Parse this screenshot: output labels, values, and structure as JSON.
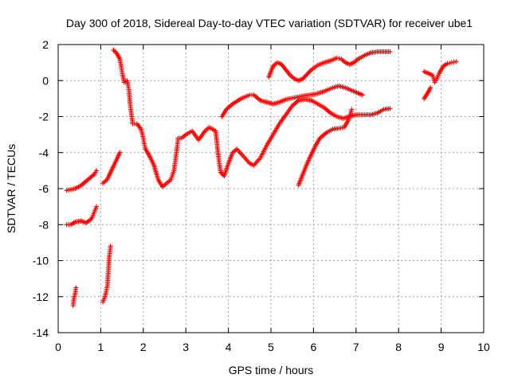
{
  "chart_data": {
    "type": "scatter",
    "title": "Day 300 of 2018, Sidereal Day-to-day VTEC variation (SDTVAR) for receiver ube1",
    "xlabel": "GPS time / hours",
    "ylabel": "SDTVAR / TECUs",
    "xlim": [
      0,
      10
    ],
    "ylim": [
      -14,
      2
    ],
    "xticks": [
      "0",
      "1",
      "2",
      "3",
      "4",
      "5",
      "6",
      "7",
      "8",
      "9",
      "10"
    ],
    "yticks": [
      "-14",
      "-12",
      "-10",
      "-8",
      "-6",
      "-4",
      "-2",
      "0",
      "2"
    ],
    "grid": true,
    "marker": "plus",
    "color": "#ff0000",
    "series": [
      {
        "points": [
          [
            0.2,
            -6.1
          ],
          [
            0.4,
            -6.0
          ],
          [
            0.55,
            -5.8
          ],
          [
            0.7,
            -5.5
          ],
          [
            0.85,
            -5.2
          ],
          [
            0.9,
            -5.0
          ]
        ]
      },
      {
        "points": [
          [
            0.2,
            -8.0
          ],
          [
            0.3,
            -8.0
          ],
          [
            0.4,
            -7.85
          ],
          [
            0.55,
            -7.8
          ],
          [
            0.65,
            -7.9
          ],
          [
            0.75,
            -7.75
          ],
          [
            0.8,
            -7.6
          ],
          [
            0.85,
            -7.3
          ],
          [
            0.9,
            -7.0
          ]
        ]
      },
      {
        "points": [
          [
            0.35,
            -12.5
          ],
          [
            0.37,
            -12.1
          ],
          [
            0.4,
            -11.8
          ],
          [
            0.42,
            -11.5
          ]
        ]
      },
      {
        "points": [
          [
            1.05,
            -12.3
          ],
          [
            1.1,
            -12.0
          ],
          [
            1.13,
            -11.7
          ],
          [
            1.16,
            -11.3
          ],
          [
            1.18,
            -10.5
          ],
          [
            1.2,
            -9.8
          ],
          [
            1.23,
            -9.2
          ]
        ]
      },
      {
        "points": [
          [
            1.05,
            -5.7
          ],
          [
            1.15,
            -5.5
          ],
          [
            1.25,
            -5.0
          ],
          [
            1.35,
            -4.5
          ],
          [
            1.45,
            -4.0
          ]
        ]
      },
      {
        "points": [
          [
            1.3,
            1.7
          ],
          [
            1.38,
            1.5
          ],
          [
            1.45,
            1.2
          ],
          [
            1.5,
            0.5
          ],
          [
            1.55,
            -0.1
          ],
          [
            1.62,
            0.0
          ],
          [
            1.66,
            -0.5
          ],
          [
            1.7,
            -1.5
          ],
          [
            1.75,
            -2.4
          ],
          [
            1.85,
            -2.4
          ],
          [
            1.95,
            -2.7
          ],
          [
            2.0,
            -3.2
          ],
          [
            2.05,
            -3.8
          ],
          [
            2.15,
            -4.2
          ],
          [
            2.25,
            -4.7
          ],
          [
            2.35,
            -5.5
          ],
          [
            2.45,
            -5.9
          ],
          [
            2.55,
            -5.7
          ],
          [
            2.65,
            -5.5
          ],
          [
            2.72,
            -5.0
          ],
          [
            2.78,
            -4.0
          ],
          [
            2.82,
            -3.2
          ],
          [
            2.9,
            -3.2
          ],
          [
            3.0,
            -3.0
          ],
          [
            3.15,
            -2.8
          ],
          [
            3.3,
            -3.3
          ],
          [
            3.45,
            -2.8
          ],
          [
            3.55,
            -2.6
          ],
          [
            3.7,
            -2.8
          ],
          [
            3.78,
            -4.5
          ],
          [
            3.82,
            -5.1
          ],
          [
            3.9,
            -5.3
          ],
          [
            4.0,
            -4.6
          ],
          [
            4.1,
            -4.0
          ],
          [
            4.2,
            -3.8
          ],
          [
            4.35,
            -4.2
          ],
          [
            4.5,
            -4.6
          ],
          [
            4.6,
            -4.7
          ],
          [
            4.75,
            -4.3
          ],
          [
            4.9,
            -3.6
          ],
          [
            5.05,
            -3.0
          ],
          [
            5.2,
            -2.4
          ],
          [
            5.35,
            -1.9
          ],
          [
            5.5,
            -1.4
          ],
          [
            5.65,
            -1.1
          ],
          [
            5.8,
            -1.05
          ],
          [
            5.95,
            -1.1
          ],
          [
            6.1,
            -1.3
          ],
          [
            6.25,
            -1.5
          ],
          [
            6.4,
            -1.8
          ],
          [
            6.55,
            -2.0
          ],
          [
            6.7,
            -2.1
          ],
          [
            6.85,
            -2.0
          ],
          [
            7.0,
            -1.9
          ],
          [
            7.2,
            -1.9
          ],
          [
            7.35,
            -1.9
          ],
          [
            7.5,
            -1.8
          ],
          [
            7.65,
            -1.6
          ],
          [
            7.8,
            -1.55
          ]
        ]
      },
      {
        "points": [
          [
            3.85,
            -2.0
          ],
          [
            3.95,
            -1.6
          ],
          [
            4.1,
            -1.3
          ],
          [
            4.3,
            -1.0
          ],
          [
            4.5,
            -0.8
          ],
          [
            4.6,
            -0.8
          ],
          [
            4.75,
            -1.1
          ],
          [
            4.9,
            -1.2
          ],
          [
            5.05,
            -1.3
          ],
          [
            5.2,
            -1.2
          ],
          [
            5.35,
            -1.05
          ],
          [
            5.55,
            -0.95
          ],
          [
            5.75,
            -0.85
          ],
          [
            5.9,
            -0.8
          ],
          [
            6.05,
            -0.75
          ],
          [
            6.25,
            -0.6
          ],
          [
            6.45,
            -0.4
          ],
          [
            6.6,
            -0.3
          ],
          [
            6.75,
            -0.4
          ],
          [
            6.9,
            -0.55
          ],
          [
            7.05,
            -0.7
          ],
          [
            7.15,
            -0.8
          ]
        ]
      },
      {
        "points": [
          [
            4.95,
            0.2
          ],
          [
            5.05,
            0.8
          ],
          [
            5.15,
            1.0
          ],
          [
            5.25,
            0.9
          ],
          [
            5.35,
            0.6
          ],
          [
            5.45,
            0.3
          ],
          [
            5.55,
            0.1
          ],
          [
            5.65,
            0.0
          ],
          [
            5.75,
            0.1
          ],
          [
            5.85,
            0.35
          ],
          [
            5.95,
            0.6
          ],
          [
            6.1,
            0.85
          ],
          [
            6.25,
            1.0
          ],
          [
            6.4,
            1.1
          ],
          [
            6.55,
            1.25
          ],
          [
            6.65,
            1.2
          ],
          [
            6.75,
            1.0
          ],
          [
            6.85,
            0.9
          ],
          [
            6.95,
            1.0
          ],
          [
            7.05,
            1.2
          ],
          [
            7.2,
            1.4
          ],
          [
            7.35,
            1.55
          ],
          [
            7.5,
            1.6
          ],
          [
            7.65,
            1.6
          ],
          [
            7.8,
            1.6
          ]
        ]
      },
      {
        "points": [
          [
            5.65,
            -5.8
          ],
          [
            5.75,
            -5.2
          ],
          [
            5.85,
            -4.6
          ],
          [
            5.95,
            -4.1
          ],
          [
            6.05,
            -3.6
          ],
          [
            6.15,
            -3.2
          ],
          [
            6.3,
            -2.9
          ],
          [
            6.45,
            -2.7
          ],
          [
            6.6,
            -2.65
          ],
          [
            6.72,
            -2.6
          ],
          [
            6.82,
            -2.2
          ],
          [
            6.9,
            -1.6
          ]
        ]
      },
      {
        "points": [
          [
            8.6,
            -1.0
          ],
          [
            8.68,
            -0.7
          ],
          [
            8.75,
            -0.4
          ]
        ]
      },
      {
        "points": [
          [
            8.6,
            0.5
          ],
          [
            8.7,
            0.4
          ],
          [
            8.8,
            0.3
          ],
          [
            8.85,
            -0.1
          ],
          [
            8.9,
            0.1
          ],
          [
            8.95,
            0.4
          ],
          [
            9.05,
            0.8
          ],
          [
            9.15,
            0.95
          ],
          [
            9.25,
            1.0
          ],
          [
            9.35,
            1.05
          ]
        ]
      }
    ]
  }
}
